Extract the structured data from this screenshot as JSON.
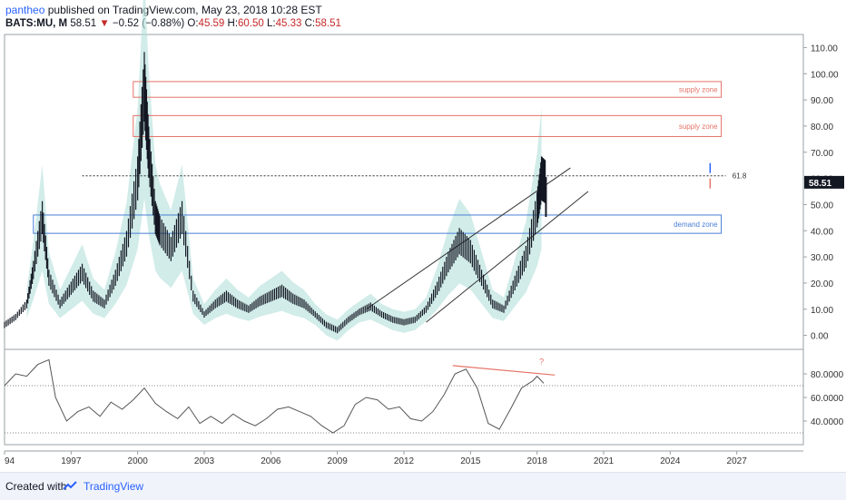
{
  "header": {
    "user": "pantheo",
    "published": "published on TradingView.com, May 23, 2018 10:28 EST"
  },
  "ticker": {
    "symbol": "BATS:MU, M",
    "last": "58.51",
    "change": "−0.52 (−0.88%)",
    "o_label": "O:",
    "o": "45.59",
    "h_label": "H:",
    "h": "60.50",
    "l_label": "L:",
    "l": "45.33",
    "c_label": "C:",
    "c": "58.51"
  },
  "footer": {
    "created": "Created with",
    "brand": "TradingView"
  },
  "colors": {
    "candle": "#131722",
    "band": "#b2dfdb",
    "supply": "#e57368",
    "demand": "#4a7fd6",
    "rsi": "#555555",
    "divergence": "#e57368",
    "price_badge": "#131722"
  },
  "chart_data": {
    "type": "line",
    "price_axis": {
      "ylim": [
        -5,
        115
      ],
      "ticks": [
        "110.00",
        "100.00",
        "90.00",
        "80.00",
        "70.00",
        "60.00",
        "50.00",
        "40.00",
        "30.00",
        "20.00",
        "10.00",
        "0.00"
      ],
      "tick_values": [
        110,
        100,
        90,
        80,
        70,
        60,
        50,
        40,
        30,
        20,
        10,
        0
      ]
    },
    "x_axis": {
      "xlim": [
        1994,
        2030
      ],
      "labels": [
        "94",
        "1997",
        "2000",
        "2003",
        "2006",
        "2009",
        "2012",
        "2015",
        "2018",
        "2021",
        "2024",
        "2027"
      ],
      "label_values": [
        1994,
        1997,
        2000,
        2003,
        2006,
        2009,
        2012,
        2015,
        2018,
        2021,
        2024,
        2027
      ]
    },
    "price_series": {
      "x": [
        1994.0,
        1994.5,
        1995.0,
        1995.3,
        1995.7,
        1996.0,
        1996.5,
        1997.0,
        1997.5,
        1998.0,
        1998.5,
        1999.0,
        1999.5,
        2000.0,
        2000.3,
        2000.5,
        2000.8,
        2001.0,
        2001.5,
        2002.0,
        2002.5,
        2003.0,
        2003.5,
        2004.0,
        2004.5,
        2005.0,
        2005.5,
        2006.0,
        2006.5,
        2007.0,
        2007.5,
        2008.0,
        2008.5,
        2009.0,
        2009.5,
        2010.0,
        2010.5,
        2011.0,
        2011.5,
        2012.0,
        2012.5,
        2013.0,
        2013.5,
        2014.0,
        2014.5,
        2015.0,
        2015.5,
        2016.0,
        2016.5,
        2017.0,
        2017.5,
        2018.0,
        2018.2,
        2018.4
      ],
      "y": [
        4,
        7,
        12,
        25,
        45,
        22,
        12,
        18,
        24,
        15,
        12,
        22,
        35,
        60,
        95,
        70,
        45,
        40,
        33,
        45,
        15,
        8,
        12,
        15,
        12,
        10,
        13,
        15,
        17,
        14,
        12,
        8,
        4,
        2,
        6,
        9,
        11,
        8,
        6,
        5,
        6,
        10,
        18,
        28,
        36,
        32,
        22,
        12,
        10,
        20,
        30,
        48,
        60,
        58.51
      ]
    },
    "supply_zones": [
      {
        "label": "supply zone",
        "low": 91,
        "high": 97
      },
      {
        "label": "supply zone",
        "low": 76,
        "high": 84
      }
    ],
    "demand_zone": {
      "label": "demand zone",
      "low": 39,
      "high": 46
    },
    "fib_level": {
      "label": "61.8",
      "value": 61
    },
    "current_price": "58.51",
    "current_value": 58.51,
    "channel_upper": {
      "x": [
        2010.3,
        2019.5
      ],
      "y": [
        10,
        64
      ]
    },
    "channel_lower": {
      "x": [
        2013.0,
        2020.3
      ],
      "y": [
        5,
        55
      ]
    },
    "rsi_axis": {
      "ylim": [
        20,
        100
      ],
      "ticks": [
        "80.0000",
        "60.0000",
        "40.0000"
      ],
      "tick_values": [
        80,
        60,
        40
      ],
      "upper_ref": 70,
      "lower_ref": 30
    },
    "rsi_series": {
      "x": [
        1994.0,
        1994.5,
        1995.0,
        1995.5,
        1996.0,
        1996.3,
        1996.8,
        1997.3,
        1997.8,
        1998.3,
        1998.8,
        1999.3,
        1999.8,
        2000.3,
        2000.8,
        2001.3,
        2001.8,
        2002.3,
        2002.8,
        2003.3,
        2003.8,
        2004.3,
        2004.8,
        2005.3,
        2005.8,
        2006.3,
        2006.8,
        2007.3,
        2007.8,
        2008.3,
        2008.8,
        2009.3,
        2009.8,
        2010.3,
        2010.8,
        2011.3,
        2011.8,
        2012.3,
        2012.8,
        2013.3,
        2013.8,
        2014.3,
        2014.8,
        2015.3,
        2015.8,
        2016.3,
        2016.8,
        2017.3,
        2017.8,
        2018.0,
        2018.3
      ],
      "y": [
        70,
        80,
        78,
        88,
        92,
        60,
        40,
        48,
        52,
        44,
        56,
        50,
        58,
        68,
        55,
        48,
        42,
        52,
        38,
        44,
        38,
        46,
        40,
        36,
        42,
        50,
        52,
        48,
        44,
        36,
        30,
        36,
        54,
        60,
        58,
        50,
        52,
        42,
        40,
        48,
        62,
        80,
        84,
        68,
        38,
        33,
        50,
        68,
        74,
        78,
        72
      ]
    },
    "divergence_line": {
      "x": [
        2014.2,
        2018.8
      ],
      "y": [
        87,
        79
      ]
    },
    "divergence_label": "?"
  }
}
